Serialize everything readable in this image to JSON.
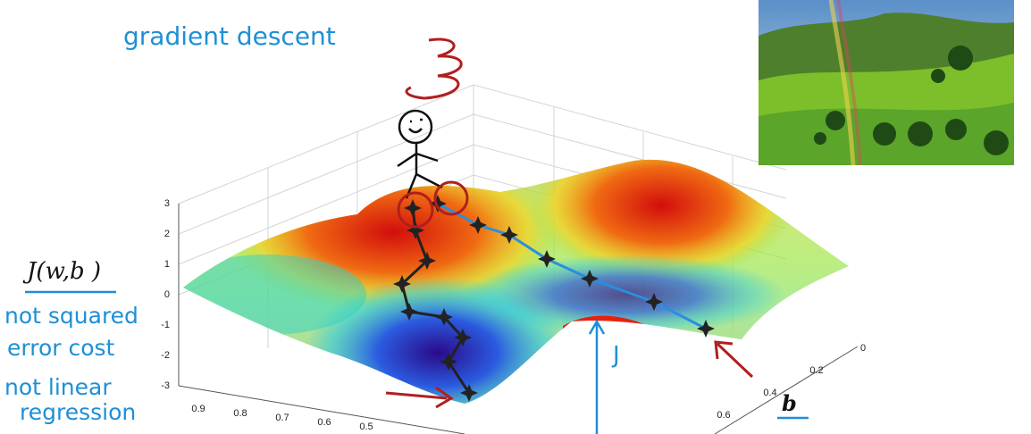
{
  "title": "gradient descent",
  "cost_label": "J(w,b )",
  "notes": [
    "not squared",
    "error cost",
    "not linear",
    "regression"
  ],
  "surface_label": "J",
  "b_label": "b",
  "z_ticks": [
    "3",
    "2",
    "1",
    "0",
    "-1",
    "-2",
    "-3"
  ],
  "w_ticks": [
    "0.9",
    "0.8",
    "0.7",
    "0.6",
    "0.5"
  ],
  "b_ticks": [
    "0",
    "0.2",
    "0.4",
    "0.6"
  ]
}
